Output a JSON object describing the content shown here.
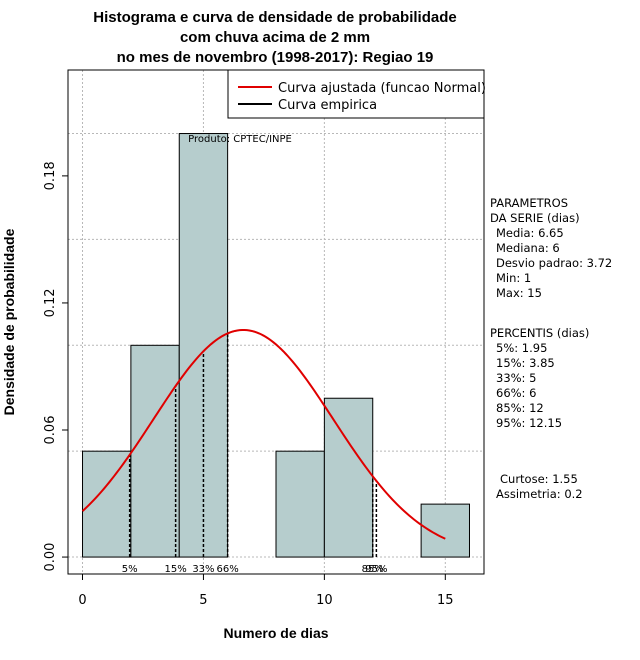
{
  "chart_data": {
    "type": "bar",
    "title_lines": [
      "Histograma e curva de densidade de probabilidade",
      "com chuva acima de 2 mm",
      "no mes de novembro (1998-2017): Regiao 19"
    ],
    "xlabel": "Numero de dias",
    "ylabel": "Densidade de probabilidade",
    "xlim": [
      -0.6,
      16.6
    ],
    "ylim": [
      -0.008,
      0.23
    ],
    "x_ticks": [
      0,
      5,
      10,
      15
    ],
    "y_ticks": [
      0.0,
      0.06,
      0.12,
      0.18
    ],
    "y_tick_labels": [
      "0.00",
      "0.06",
      "0.12",
      "0.18"
    ],
    "grid": true,
    "bar_color": "#b6cdcd",
    "curve_color": "#e00000",
    "bins": [
      {
        "start": 0,
        "end": 2,
        "density": 0.05
      },
      {
        "start": 2,
        "end": 4,
        "density": 0.1
      },
      {
        "start": 4,
        "end": 6,
        "density": 0.2
      },
      {
        "start": 6,
        "end": 8,
        "density": 0.0
      },
      {
        "start": 8,
        "end": 10,
        "density": 0.05
      },
      {
        "start": 10,
        "end": 12,
        "density": 0.075
      },
      {
        "start": 12,
        "end": 14,
        "density": 0.0
      },
      {
        "start": 14,
        "end": 16,
        "density": 0.025
      }
    ],
    "normal_fit": {
      "mean": 6.65,
      "sd": 3.72,
      "x_from": 0,
      "x_to": 15
    },
    "percentile_lines": [
      {
        "label": "5%",
        "x": 1.95
      },
      {
        "label": "15%",
        "x": 3.85
      },
      {
        "label": "33%",
        "x": 5
      },
      {
        "label": "66%",
        "x": 6
      },
      {
        "label": "85%",
        "x": 12
      },
      {
        "label": "95%",
        "x": 12.15
      }
    ],
    "product_label": "Produto: CPTEC/INPE",
    "legend": {
      "placement": "top-right",
      "entries": [
        {
          "label": "Curva ajustada (funcao Normal)",
          "color": "#e00000"
        },
        {
          "label": "Curva empirica",
          "color": "#000000"
        }
      ]
    },
    "side_panel": {
      "parametros": [
        "PARAMETROS",
        "DA SERIE (dias)",
        "Media: 6.65",
        "Mediana: 6",
        "Desvio padrao: 3.72",
        "Min: 1",
        "Max: 15"
      ],
      "percentis": [
        "PERCENTIS (dias)",
        "5%: 1.95",
        "15%: 3.85",
        "33%: 5",
        "66%: 6",
        "85%: 12",
        "95%: 12.15"
      ],
      "shape": [
        "Curtose: 1.55",
        "Assimetria: 0.2"
      ]
    }
  }
}
